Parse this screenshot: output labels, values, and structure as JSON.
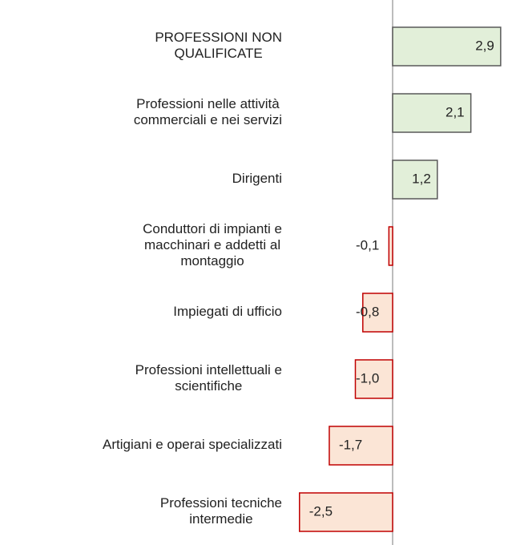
{
  "chart_data": {
    "type": "bar",
    "orientation": "horizontal",
    "categories": [
      "PROFESSIONI NON\nQUALIFICATE",
      "Professioni nelle attività\ncommerciali e nei servizi",
      "Dirigenti",
      "Conduttori di impianti e\nmacchinari e addetti al\nmontaggio",
      "Impiegati di ufficio",
      "Professioni intellettuali e\nscientifiche",
      "Artigiani e operai specializzati",
      "Professioni tecniche\nintermedie"
    ],
    "values": [
      2.9,
      2.1,
      1.2,
      -0.1,
      -0.8,
      -1.0,
      -1.7,
      -2.5
    ],
    "value_labels": [
      "2,9",
      "2,1",
      "1,2",
      "-0,1",
      "-0,8",
      "-1,0",
      "-1,7",
      "-2,5"
    ],
    "positive_color": "#e2efd9",
    "positive_edge": "#595959",
    "negative_color": "#fbe5d6",
    "negative_edge": "#c00000"
  }
}
